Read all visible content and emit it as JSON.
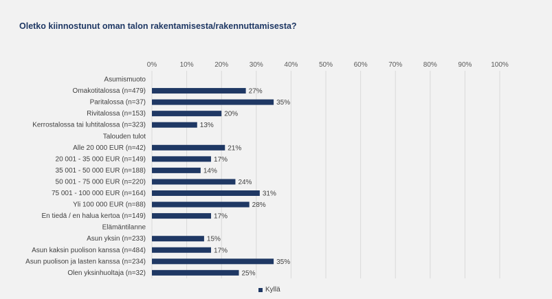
{
  "chart_data": {
    "type": "bar",
    "orientation": "horizontal",
    "title": "Oletko kiinnostunut oman talon rakentamisesta/rakennuttamisesta?",
    "xlim": [
      0,
      100
    ],
    "x_ticks": [
      "0%",
      "10%",
      "20%",
      "30%",
      "40%",
      "50%",
      "60%",
      "70%",
      "80%",
      "90%",
      "100%"
    ],
    "grid": true,
    "legend_position": "bottom",
    "bar_color": "#1f3864",
    "categories": [
      "Asumismuoto",
      "Omakotitalossa (n=479)",
      "Paritalossa (n=37)",
      "Rivitalossa (n=153)",
      "Kerrostalossa tai luhtitalossa (n=323)",
      "Talouden tulot",
      "Alle 20 000 EUR (n=42)",
      "20 001 - 35 000 EUR (n=149)",
      "35 001 - 50 000 EUR (n=188)",
      "50 001 - 75 000 EUR (n=220)",
      "75 001 - 100 000 EUR (n=164)",
      "Yli 100 000 EUR (n=88)",
      "En tiedä / en halua kertoa (n=149)",
      "Elämäntilanne",
      "Asun yksin (n=233)",
      "Asun kaksin puolison kanssa (n=484)",
      "Asun puolison ja lasten kanssa (n=234)",
      "Olen yksinhuoltaja (n=32)"
    ],
    "series": [
      {
        "name": "Kyllä",
        "values": [
          null,
          27,
          35,
          20,
          13,
          null,
          21,
          17,
          14,
          24,
          31,
          28,
          17,
          null,
          15,
          17,
          35,
          25
        ],
        "labels": [
          "",
          "27%",
          "35%",
          "20%",
          "13%",
          "",
          "21%",
          "17%",
          "14%",
          "24%",
          "31%",
          "28%",
          "17%",
          "",
          "15%",
          "17%",
          "35%",
          "25%"
        ]
      }
    ]
  }
}
